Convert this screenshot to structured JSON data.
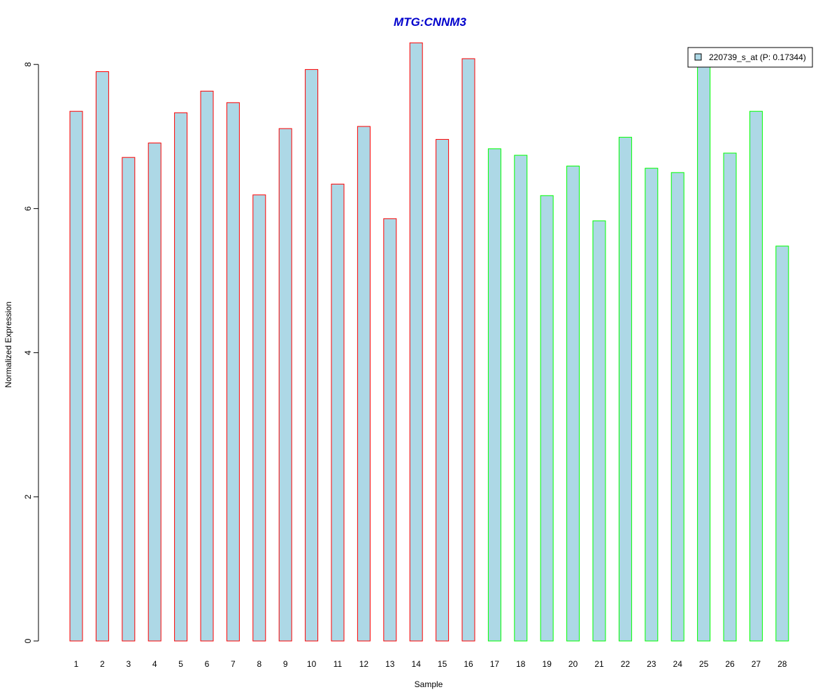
{
  "chart_data": {
    "type": "bar",
    "title": "MTG:CNNM3",
    "xlabel": "Sample",
    "ylabel": "Normalized Expression",
    "categories": [
      "1",
      "2",
      "3",
      "4",
      "5",
      "6",
      "7",
      "8",
      "9",
      "10",
      "11",
      "12",
      "13",
      "14",
      "15",
      "16",
      "17",
      "18",
      "19",
      "20",
      "21",
      "22",
      "23",
      "24",
      "25",
      "26",
      "27",
      "28"
    ],
    "values": [
      7.35,
      7.9,
      6.71,
      6.91,
      7.33,
      7.63,
      7.47,
      6.19,
      7.11,
      7.93,
      6.34,
      7.14,
      5.86,
      8.3,
      6.96,
      8.08,
      6.83,
      6.74,
      6.18,
      6.59,
      5.83,
      6.99,
      6.56,
      6.5,
      8.03,
      6.77,
      7.35,
      5.48
    ],
    "ylim": [
      0,
      8.5
    ],
    "yticks": [
      0,
      2,
      4,
      6,
      8
    ],
    "grid": false,
    "colors": {
      "fill": "#add8e6",
      "group1_border": "#ff0000",
      "group2_border": "#00ff00",
      "title": "#0000cc"
    },
    "group1_count": 16,
    "legend": {
      "position": "top-right",
      "label": "220739_s_at (P: 0.17344)"
    }
  }
}
